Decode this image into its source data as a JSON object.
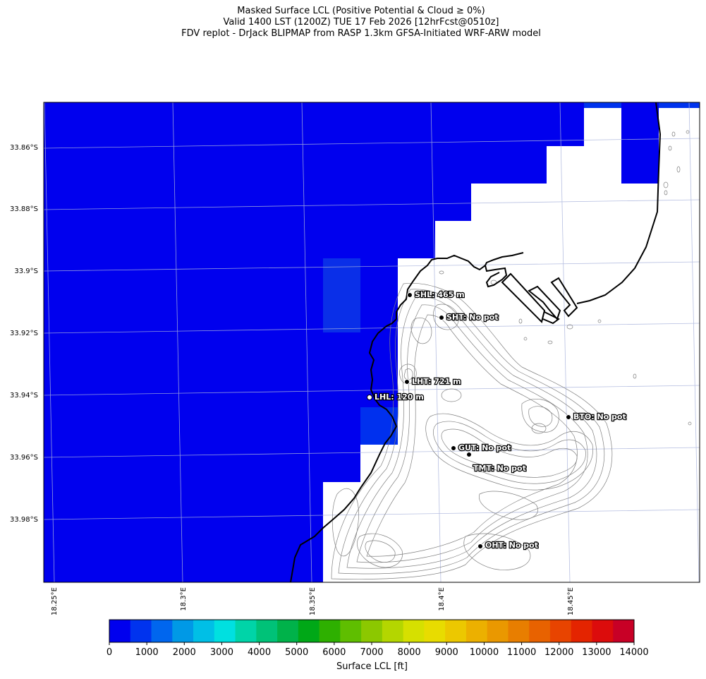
{
  "header": {
    "line1": "Masked Surface LCL (Positive Potential & Cloud ≥ 0%)",
    "line2": "Valid 1400 LST (1200Z) TUE 17 Feb 2026 [12hrFcst@0510z]",
    "line3": "FDV replot - DrJack BLIPMAP from RASP 1.3km GFSA-Initiated WRF-ARW model"
  },
  "axes": {
    "lat_ticks": [
      "33.86°S",
      "33.88°S",
      "33.9°S",
      "33.92°S",
      "33.94°S",
      "33.96°S",
      "33.98°S"
    ],
    "lon_ticks": [
      "18.25°E",
      "18.3°E",
      "18.35°E",
      "18.4°E",
      "18.45°E"
    ]
  },
  "sites": [
    {
      "code": "SHL",
      "label": "SHL: 465 m",
      "marker": "black"
    },
    {
      "code": "SHT",
      "label": "SHT: No pot",
      "marker": "black"
    },
    {
      "code": "LHT",
      "label": "LHT: 721 m",
      "marker": "black"
    },
    {
      "code": "LHL",
      "label": "LHL: 120 m",
      "marker": "white"
    },
    {
      "code": "BTO",
      "label": "BTO: No pot",
      "marker": "black"
    },
    {
      "code": "GUT",
      "label": "GUT: No pot",
      "marker": "black"
    },
    {
      "code": "TMT",
      "label": "TMT: No pot",
      "marker": "black"
    },
    {
      "code": "OHT",
      "label": "OHT: No pot",
      "marker": "black"
    }
  ],
  "colorbar": {
    "label": "Surface LCL [ft]",
    "ticks": [
      "0",
      "1000",
      "2000",
      "3000",
      "4000",
      "5000",
      "6000",
      "7000",
      "8000",
      "9000",
      "10000",
      "11000",
      "12000",
      "13000",
      "14000"
    ],
    "colors": [
      "#0000ee",
      "#0033ee",
      "#0066ee",
      "#0099e6",
      "#00bfe6",
      "#00e0e0",
      "#00d4a8",
      "#00c278",
      "#00b24a",
      "#00a817",
      "#2eb000",
      "#5fbe00",
      "#8cc800",
      "#b4d600",
      "#d6e000",
      "#e8dc00",
      "#ecc800",
      "#ecb000",
      "#ea9800",
      "#e87e00",
      "#e86200",
      "#e84400",
      "#e42400",
      "#dc0c0c",
      "#c80026"
    ]
  },
  "colors": {
    "low_lcl": "#0000ee",
    "mid_blue": "#0033ee",
    "lighter_blue": "#0044ee",
    "gridline": "#aab4dc",
    "coastline": "#000000",
    "contour": "#808080"
  }
}
